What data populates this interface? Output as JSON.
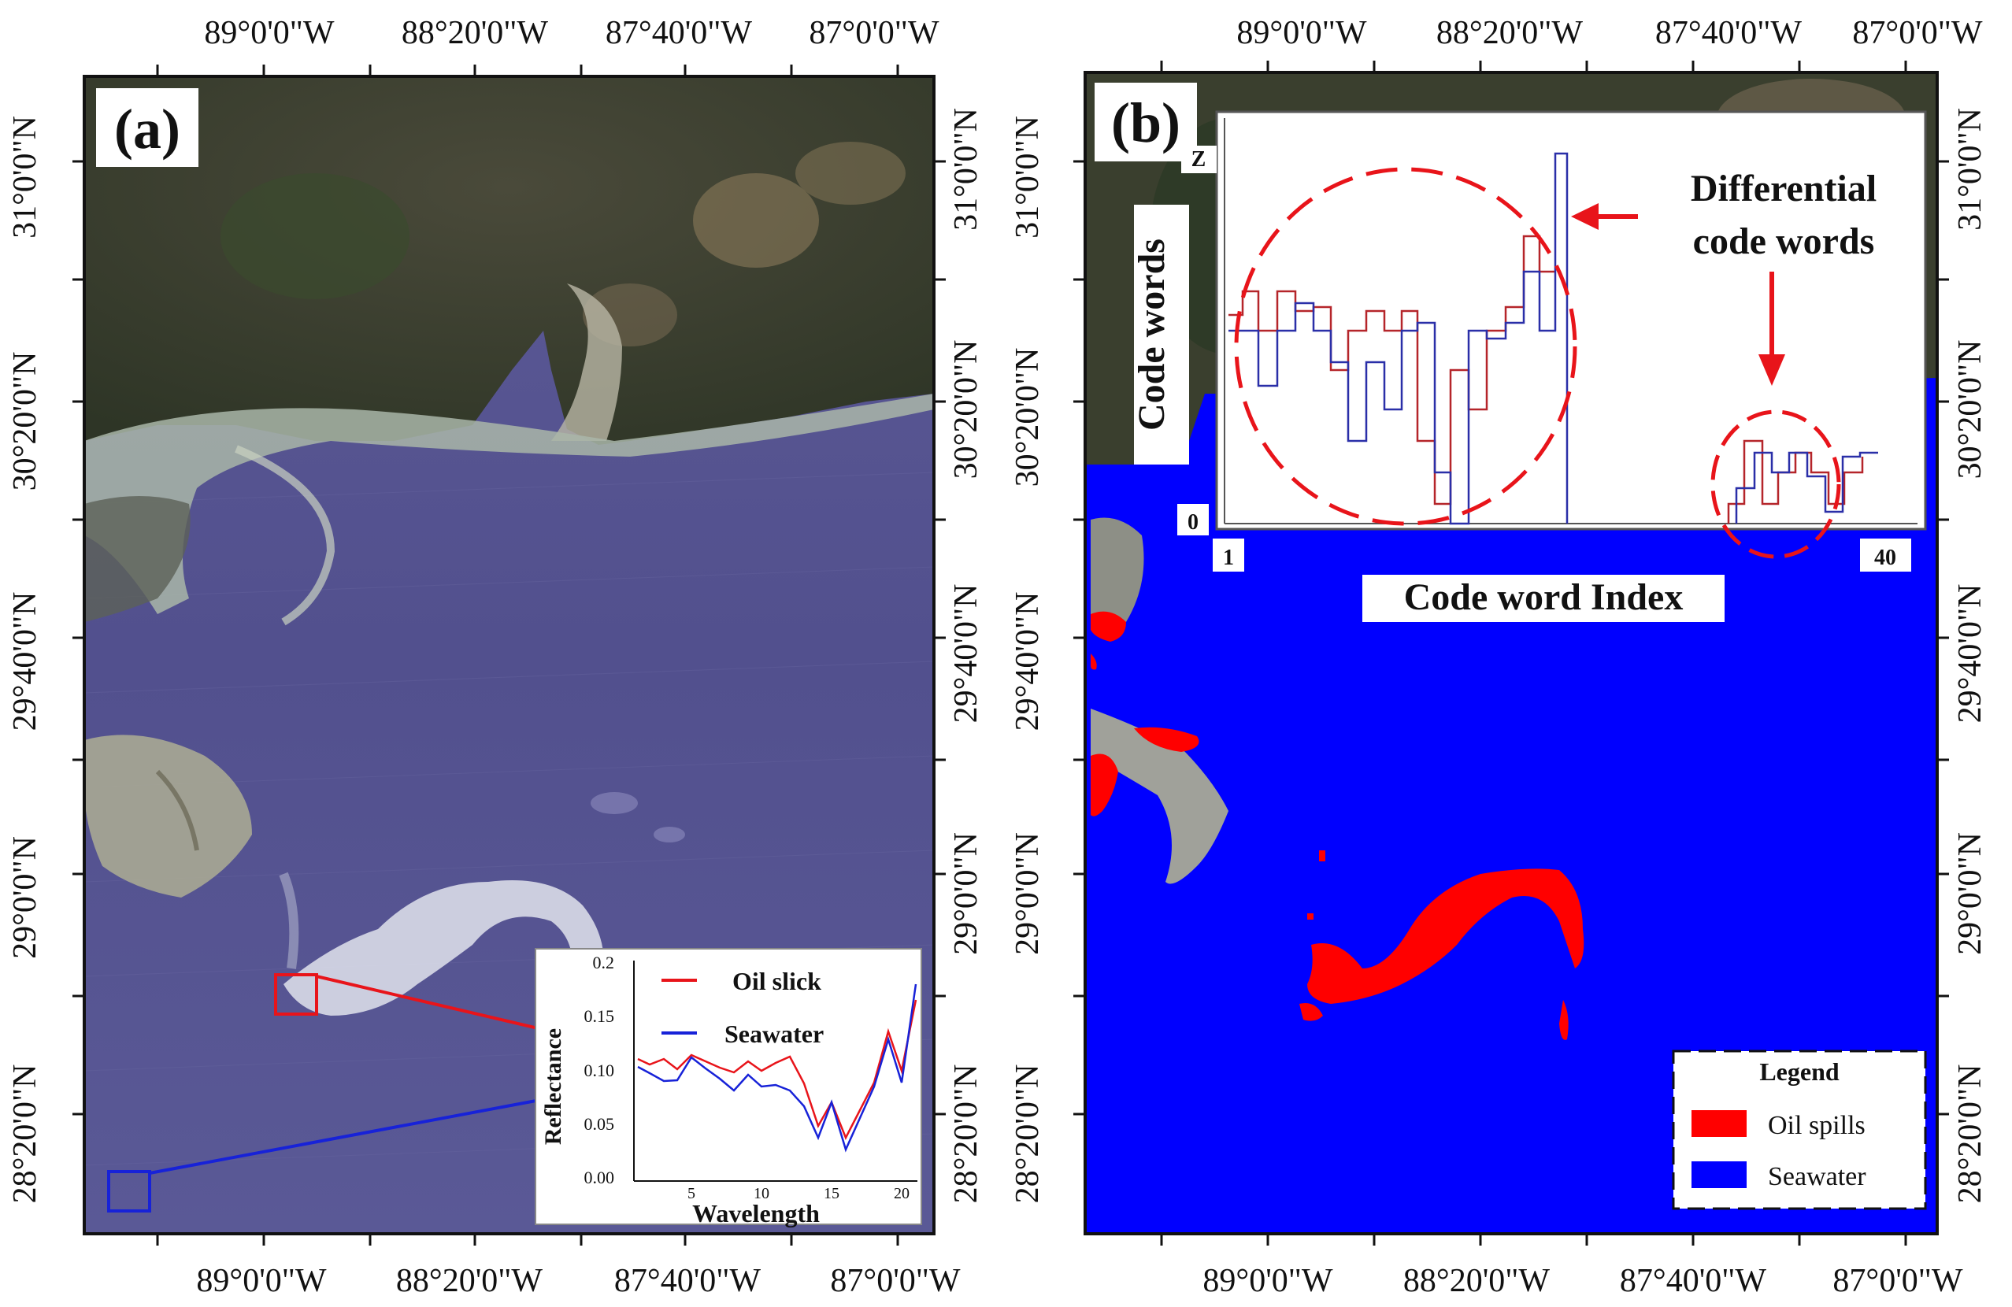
{
  "panel_a": {
    "label": "(a)",
    "top_ticks": [
      "89°0'0\"W",
      "88°20'0\"W",
      "87°40'0\"W",
      "87°0'0\"W"
    ],
    "bottom_ticks": [
      "89°0'0\"W",
      "88°20'0\"W",
      "87°40'0\"W",
      "87°0'0\"W"
    ],
    "left_ticks": [
      "31°0'0\"N",
      "30°20'0\"N",
      "29°40'0\"N",
      "29°0'0\"N",
      "28°20'0\"N"
    ],
    "right_ticks": [
      "31°0'0\"N",
      "30°20'0\"N",
      "29°40'0\"N",
      "29°0'0\"N",
      "28°20'0\"N"
    ],
    "inset": {
      "legend_oil": "Oil slick",
      "legend_sea": "Seawater",
      "ylabel": "Reflectance",
      "xlabel": "Wavelength",
      "yticks": [
        "0.2",
        "0.15",
        "0.10",
        "0.05",
        "0.00"
      ],
      "xticks": [
        "5",
        "10",
        "15",
        "20"
      ]
    },
    "colors": {
      "oil": "#e8141a",
      "sea": "#1722d8"
    }
  },
  "panel_b": {
    "label": "(b)",
    "top_ticks": [
      "89°0'0\"W",
      "88°20'0\"W",
      "87°40'0\"W",
      "87°0'0\"W"
    ],
    "bottom_ticks": [
      "89°0'0\"W",
      "88°20'0\"W",
      "87°40'0\"W",
      "87°0'0\"W"
    ],
    "left_ticks": [
      "31°0'0\"N",
      "30°20'0\"N",
      "29°40'0\"N",
      "29°0'0\"N",
      "28°20'0\"N"
    ],
    "right_ticks": [
      "31°0'0\"N",
      "30°20'0\"N",
      "29°40'0\"N",
      "29°0'0\"N",
      "28°20'0\"N"
    ],
    "inset": {
      "ylabel": "Code words",
      "xlabel": "Code word Index",
      "z_label": "Z",
      "zero_label": "0",
      "x_start": "1",
      "x_end": "40",
      "annotation_line1": "Differential",
      "annotation_line2": "code words"
    },
    "legend": {
      "title": "Legend",
      "oil": "Oil spills",
      "sea": "Seawater"
    },
    "colors": {
      "oil": "#ff0000",
      "sea": "#0000ff"
    }
  }
}
